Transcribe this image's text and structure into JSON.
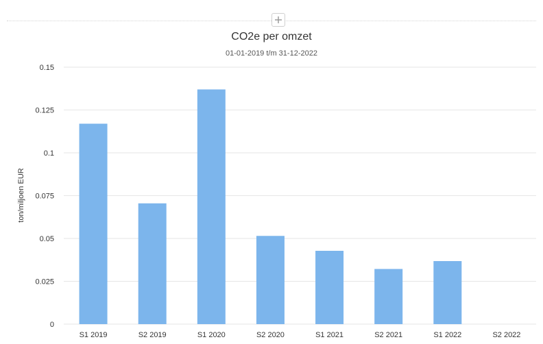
{
  "toolbar": {
    "add_icon": "plus-icon"
  },
  "chart_data": {
    "type": "bar",
    "title": "CO2e per omzet",
    "subtitle": "01-01-2019 t/m 31-12-2022",
    "xlabel": "",
    "ylabel": "ton/miljoen EUR",
    "categories": [
      "S1 2019",
      "S2 2019",
      "S1 2020",
      "S2 2020",
      "S1 2021",
      "S2 2021",
      "S1 2022",
      "S2 2022"
    ],
    "values": [
      0.117,
      0.0705,
      0.137,
      0.0515,
      0.0428,
      0.0322,
      0.0368,
      0
    ],
    "ylim": [
      0,
      0.15
    ],
    "yticks": [
      "0",
      "0.025",
      "0.05",
      "0.075",
      "0.1",
      "0.125",
      "0.15"
    ],
    "grid": true,
    "legend": "none",
    "colors": {
      "bar": "#7cb5ec",
      "grid": "#e6e6e6",
      "axis_text": "#333333"
    }
  }
}
